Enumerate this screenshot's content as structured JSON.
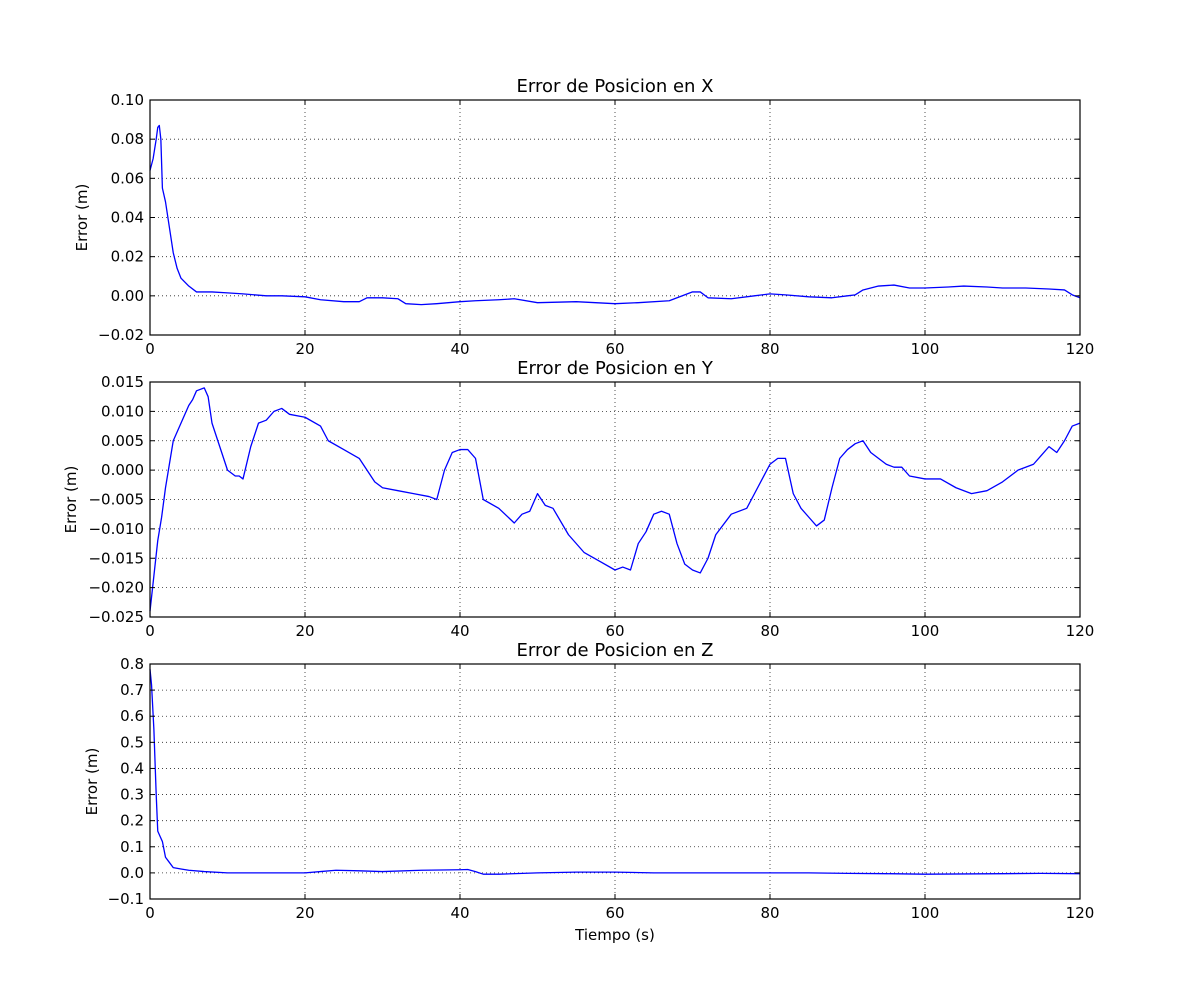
{
  "chart_data": [
    {
      "type": "line",
      "title": "Error de Posicion en X",
      "xlabel": "",
      "ylabel": "Error (m)",
      "xlim": [
        0,
        120
      ],
      "ylim": [
        -0.02,
        0.1
      ],
      "xticks": [
        0,
        20,
        40,
        60,
        80,
        100,
        120
      ],
      "xtick_labels": [
        "0",
        "20",
        "40",
        "60",
        "80",
        "100",
        "120"
      ],
      "yticks": [
        -0.02,
        0.0,
        0.02,
        0.04,
        0.06,
        0.08,
        0.1
      ],
      "ytick_labels": [
        "−0.02",
        "0.00",
        "0.02",
        "0.04",
        "0.06",
        "0.08",
        "0.10"
      ],
      "grid": true,
      "color": "#0000ff",
      "series": [
        {
          "x": [
            0,
            0.4,
            0.8,
            1.0,
            1.2,
            1.4,
            1.6,
            2.0,
            2.5,
            3.0,
            3.5,
            4.0,
            5.0,
            6.0,
            7.0,
            8.0,
            10.0,
            12.0,
            15.0,
            17.0,
            20.0,
            22.0,
            25.0,
            27.0,
            28.0,
            30.0,
            32.0,
            33.0,
            35.0,
            37.0,
            40.0,
            42.0,
            45.0,
            47.0,
            50.0,
            55.0,
            60.0,
            63.0,
            67.0,
            70.0,
            71.0,
            72.0,
            75.0,
            78.0,
            80.0,
            82.0,
            85.0,
            88.0,
            90.0,
            91.0,
            92.0,
            94.0,
            96.0,
            98.0,
            100.0,
            103.0,
            105.0,
            108.0,
            110.0,
            113.0,
            116.0,
            118.0,
            119.0,
            120.0
          ],
          "y": [
            0.064,
            0.07,
            0.08,
            0.086,
            0.087,
            0.08,
            0.055,
            0.048,
            0.035,
            0.022,
            0.014,
            0.009,
            0.005,
            0.002,
            0.002,
            0.002,
            0.0015,
            0.001,
            0.0,
            0.0,
            -0.0005,
            -0.002,
            -0.003,
            -0.003,
            -0.001,
            -0.001,
            -0.0015,
            -0.004,
            -0.0045,
            -0.004,
            -0.003,
            -0.0025,
            -0.002,
            -0.0015,
            -0.0035,
            -0.003,
            -0.004,
            -0.0035,
            -0.0025,
            0.002,
            0.002,
            -0.001,
            -0.0015,
            0.0,
            0.001,
            0.0005,
            -0.0005,
            -0.001,
            0.0,
            0.0005,
            0.003,
            0.005,
            0.0055,
            0.004,
            0.004,
            0.0045,
            0.005,
            0.0045,
            0.004,
            0.004,
            0.0035,
            0.003,
            0.0005,
            -0.001
          ]
        }
      ]
    },
    {
      "type": "line",
      "title": "Error de Posicion en Y",
      "xlabel": "",
      "ylabel": "Error (m)",
      "xlim": [
        0,
        120
      ],
      "ylim": [
        -0.025,
        0.015
      ],
      "xticks": [
        0,
        20,
        40,
        60,
        80,
        100,
        120
      ],
      "xtick_labels": [
        "0",
        "20",
        "40",
        "60",
        "80",
        "100",
        "120"
      ],
      "yticks": [
        -0.025,
        -0.02,
        -0.015,
        -0.01,
        -0.005,
        0.0,
        0.005,
        0.01,
        0.015
      ],
      "ytick_labels": [
        "−0.025",
        "−0.020",
        "−0.015",
        "−0.010",
        "−0.005",
        "0.000",
        "0.005",
        "0.010",
        "0.015"
      ],
      "grid": true,
      "color": "#0000ff",
      "series": [
        {
          "x": [
            0,
            0.5,
            1.0,
            1.5,
            2.0,
            3.0,
            4.0,
            5.0,
            5.5,
            6.0,
            7.0,
            7.5,
            8.0,
            9.0,
            10.0,
            11.0,
            11.5,
            12.0,
            13.0,
            14.0,
            15.0,
            16.0,
            17.0,
            18.0,
            20.0,
            22.0,
            23.0,
            25.0,
            27.0,
            29.0,
            30.0,
            32.0,
            34.0,
            36.0,
            37.0,
            38.0,
            39.0,
            40.0,
            41.0,
            42.0,
            43.0,
            45.0,
            47.0,
            48.0,
            49.0,
            50.0,
            51.0,
            52.0,
            54.0,
            56.0,
            58.0,
            60.0,
            61.0,
            62.0,
            63.0,
            64.0,
            65.0,
            66.0,
            67.0,
            68.0,
            69.0,
            70.0,
            71.0,
            72.0,
            73.0,
            75.0,
            77.0,
            78.0,
            79.0,
            80.0,
            81.0,
            82.0,
            83.0,
            84.0,
            85.0,
            86.0,
            87.0,
            88.0,
            89.0,
            90.0,
            91.0,
            92.0,
            93.0,
            95.0,
            96.0,
            97.0,
            98.0,
            100.0,
            102.0,
            104.0,
            106.0,
            108.0,
            110.0,
            112.0,
            114.0,
            115.0,
            116.0,
            117.0,
            118.0,
            119.0,
            120.0
          ],
          "y": [
            -0.024,
            -0.018,
            -0.012,
            -0.008,
            -0.003,
            0.005,
            0.008,
            0.011,
            0.012,
            0.0135,
            0.014,
            0.0125,
            0.008,
            0.004,
            0.0,
            -0.001,
            -0.001,
            -0.0015,
            0.004,
            0.008,
            0.0085,
            0.01,
            0.0105,
            0.0095,
            0.009,
            0.0075,
            0.005,
            0.0035,
            0.002,
            -0.002,
            -0.003,
            -0.0035,
            -0.004,
            -0.0045,
            -0.005,
            0.0,
            0.003,
            0.0035,
            0.0035,
            0.002,
            -0.005,
            -0.0065,
            -0.009,
            -0.0075,
            -0.007,
            -0.004,
            -0.006,
            -0.0065,
            -0.011,
            -0.014,
            -0.0155,
            -0.017,
            -0.0165,
            -0.017,
            -0.0125,
            -0.0105,
            -0.0075,
            -0.007,
            -0.0075,
            -0.0125,
            -0.016,
            -0.017,
            -0.0175,
            -0.015,
            -0.011,
            -0.0075,
            -0.0065,
            -0.004,
            -0.0015,
            0.001,
            0.002,
            0.002,
            -0.004,
            -0.0065,
            -0.008,
            -0.0095,
            -0.0085,
            -0.003,
            0.002,
            0.0035,
            0.0045,
            0.005,
            0.003,
            0.001,
            0.0005,
            0.0005,
            -0.001,
            -0.0015,
            -0.0015,
            -0.003,
            -0.004,
            -0.0035,
            -0.002,
            0.0,
            0.001,
            0.0025,
            0.004,
            0.003,
            0.005,
            0.0075,
            0.008
          ]
        }
      ]
    },
    {
      "type": "line",
      "title": "Error de Posicion en Z",
      "xlabel": "Tiempo (s)",
      "ylabel": "Error (m)",
      "xlim": [
        0,
        120
      ],
      "ylim": [
        -0.1,
        0.8
      ],
      "xticks": [
        0,
        20,
        40,
        60,
        80,
        100,
        120
      ],
      "xtick_labels": [
        "0",
        "20",
        "40",
        "60",
        "80",
        "100",
        "120"
      ],
      "yticks": [
        -0.1,
        0.0,
        0.1,
        0.2,
        0.3,
        0.4,
        0.5,
        0.6,
        0.7,
        0.8
      ],
      "ytick_labels": [
        "−0.1",
        "0.0",
        "0.1",
        "0.2",
        "0.3",
        "0.4",
        "0.5",
        "0.6",
        "0.7",
        "0.8"
      ],
      "grid": true,
      "color": "#0000ff",
      "series": [
        {
          "x": [
            0,
            0.2,
            0.5,
            0.8,
            1.0,
            1.3,
            1.6,
            2.0,
            2.5,
            3.0,
            4.0,
            5.0,
            7.0,
            10.0,
            15.0,
            20.0,
            22.0,
            24.0,
            27.0,
            30.0,
            35.0,
            40.0,
            41.0,
            42.0,
            43.0,
            45.0,
            50.0,
            55.0,
            60.0,
            65.0,
            70.0,
            75.0,
            80.0,
            85.0,
            90.0,
            95.0,
            100.0,
            105.0,
            110.0,
            115.0,
            120.0
          ],
          "y": [
            0.78,
            0.72,
            0.55,
            0.3,
            0.16,
            0.14,
            0.12,
            0.06,
            0.04,
            0.02,
            0.015,
            0.01,
            0.005,
            0.0,
            0.0,
            0.0,
            0.005,
            0.01,
            0.008,
            0.005,
            0.01,
            0.012,
            0.013,
            0.005,
            -0.005,
            -0.005,
            0.0,
            0.003,
            0.003,
            0.0,
            0.0,
            0.0,
            0.0,
            0.0,
            -0.002,
            -0.003,
            -0.005,
            -0.004,
            -0.003,
            -0.002,
            -0.003
          ]
        }
      ]
    }
  ]
}
